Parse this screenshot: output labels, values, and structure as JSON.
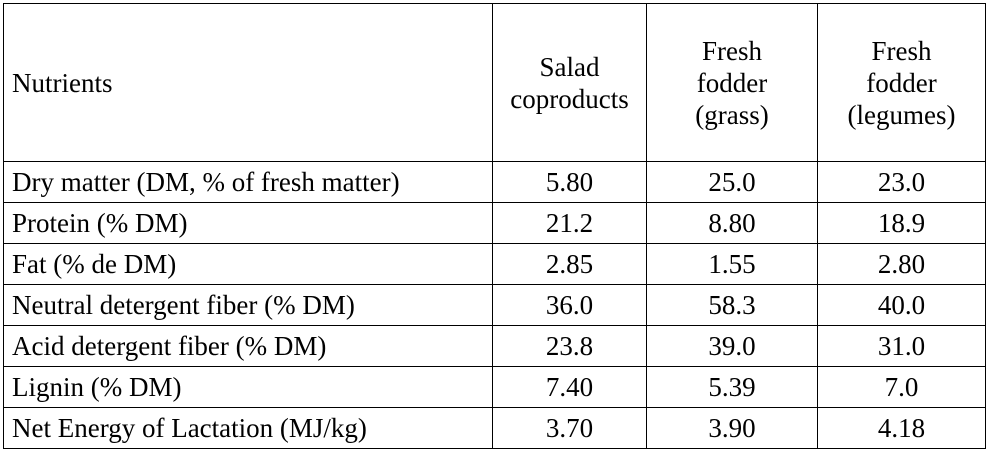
{
  "table": {
    "headers": [
      "Nutrients",
      "Salad\ncoproducts",
      "Fresh\nfodder\n(grass)",
      "Fresh\nfodder\n(legumes)"
    ],
    "rows": [
      {
        "label": "Dry matter (DM, % of fresh matter)",
        "values": [
          "5.80",
          "25.0",
          "23.0"
        ]
      },
      {
        "label": "Protein (% DM)",
        "values": [
          "21.2",
          "8.80",
          "18.9"
        ]
      },
      {
        "label": "Fat (% de DM)",
        "values": [
          "2.85",
          "1.55",
          "2.80"
        ]
      },
      {
        "label": "Neutral detergent fiber (% DM)",
        "values": [
          "36.0",
          "58.3",
          "40.0"
        ]
      },
      {
        "label": "Acid detergent fiber (% DM)",
        "values": [
          "23.8",
          "39.0",
          "31.0"
        ]
      },
      {
        "label": "Lignin (% DM)",
        "values": [
          "7.40",
          "5.39",
          "7.0"
        ]
      },
      {
        "label": "Net Energy of Lactation (MJ/kg)",
        "values": [
          "3.70",
          "3.90",
          "4.18"
        ]
      }
    ]
  }
}
